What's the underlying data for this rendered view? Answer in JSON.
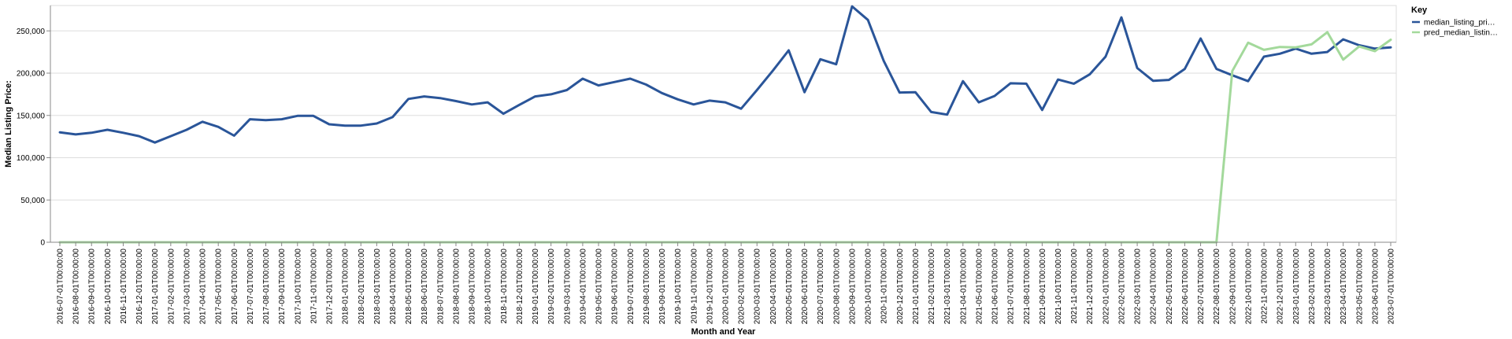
{
  "chart_data": {
    "type": "line",
    "title": "",
    "xlabel": "Month and Year",
    "ylabel": "Median Listing Price:",
    "ylim": [
      0,
      280000
    ],
    "yticks": [
      0,
      50000,
      100000,
      150000,
      200000,
      250000
    ],
    "ytick_labels": [
      "0",
      "50,000",
      "100,000",
      "150,000",
      "200,000",
      "250,000"
    ],
    "grid": true,
    "legend": {
      "title": "Key",
      "position": "top-right"
    },
    "x": [
      "2016-07-01T00:00:00",
      "2016-08-01T00:00:00",
      "2016-09-01T00:00:00",
      "2016-10-01T00:00:00",
      "2016-11-01T00:00:00",
      "2016-12-01T00:00:00",
      "2017-01-01T00:00:00",
      "2017-02-01T00:00:00",
      "2017-03-01T00:00:00",
      "2017-04-01T00:00:00",
      "2017-05-01T00:00:00",
      "2017-06-01T00:00:00",
      "2017-07-01T00:00:00",
      "2017-08-01T00:00:00",
      "2017-09-01T00:00:00",
      "2017-10-01T00:00:00",
      "2017-11-01T00:00:00",
      "2017-12-01T00:00:00",
      "2018-01-01T00:00:00",
      "2018-02-01T00:00:00",
      "2018-03-01T00:00:00",
      "2018-04-01T00:00:00",
      "2018-05-01T00:00:00",
      "2018-06-01T00:00:00",
      "2018-07-01T00:00:00",
      "2018-08-01T00:00:00",
      "2018-09-01T00:00:00",
      "2018-10-01T00:00:00",
      "2018-11-01T00:00:00",
      "2018-12-01T00:00:00",
      "2019-01-01T00:00:00",
      "2019-02-01T00:00:00",
      "2019-03-01T00:00:00",
      "2019-04-01T00:00:00",
      "2019-05-01T00:00:00",
      "2019-06-01T00:00:00",
      "2019-07-01T00:00:00",
      "2019-08-01T00:00:00",
      "2019-09-01T00:00:00",
      "2019-10-01T00:00:00",
      "2019-11-01T00:00:00",
      "2019-12-01T00:00:00",
      "2020-01-01T00:00:00",
      "2020-02-01T00:00:00",
      "2020-03-01T00:00:00",
      "2020-04-01T00:00:00",
      "2020-05-01T00:00:00",
      "2020-06-01T00:00:00",
      "2020-07-01T00:00:00",
      "2020-08-01T00:00:00",
      "2020-09-01T00:00:00",
      "2020-10-01T00:00:00",
      "2020-11-01T00:00:00",
      "2020-12-01T00:00:00",
      "2021-01-01T00:00:00",
      "2021-02-01T00:00:00",
      "2021-03-01T00:00:00",
      "2021-04-01T00:00:00",
      "2021-05-01T00:00:00",
      "2021-06-01T00:00:00",
      "2021-07-01T00:00:00",
      "2021-08-01T00:00:00",
      "2021-09-01T00:00:00",
      "2021-10-01T00:00:00",
      "2021-11-01T00:00:00",
      "2021-12-01T00:00:00",
      "2022-01-01T00:00:00",
      "2022-02-01T00:00:00",
      "2022-03-01T00:00:00",
      "2022-04-01T00:00:00",
      "2022-05-01T00:00:00",
      "2022-06-01T00:00:00",
      "2022-07-01T00:00:00",
      "2022-08-01T00:00:00",
      "2022-09-01T00:00:00",
      "2022-10-01T00:00:00",
      "2022-11-01T00:00:00",
      "2022-12-01T00:00:00",
      "2023-01-01T00:00:00",
      "2023-02-01T00:00:00",
      "2023-03-01T00:00:00",
      "2023-04-01T00:00:00",
      "2023-05-01T00:00:00",
      "2023-06-01T00:00:00",
      "2023-07-01T00:00:00"
    ],
    "series": [
      {
        "name": "median_listing_pri…",
        "color": "#2a5599",
        "values": [
          130000,
          127500,
          129500,
          133000,
          129500,
          125500,
          118000,
          125500,
          133000,
          142500,
          136500,
          126000,
          145500,
          144500,
          145500,
          149500,
          149500,
          139500,
          138000,
          138000,
          140500,
          148000,
          169500,
          172500,
          170500,
          167000,
          163000,
          165500,
          152000,
          162500,
          172500,
          175000,
          180000,
          193500,
          185500,
          189500,
          193500,
          186500,
          176500,
          169000,
          163000,
          167500,
          165500,
          158000,
          180000,
          203000,
          227000,
          177500,
          216500,
          210500,
          279000,
          263000,
          214500,
          177000,
          177500,
          154000,
          151000,
          190500,
          165500,
          173000,
          188000,
          187500,
          156500,
          192500,
          187500,
          198500,
          219500,
          266000,
          206000,
          191000,
          192000,
          205000,
          241000,
          205000,
          197500,
          190500,
          219500,
          223000,
          229000,
          223000,
          225000,
          240000,
          233000,
          229000,
          230500
        ]
      },
      {
        "name": "pred_median_listin…",
        "color": "#a3d99b",
        "values": [
          0,
          0,
          0,
          0,
          0,
          0,
          0,
          0,
          0,
          0,
          0,
          0,
          0,
          0,
          0,
          0,
          0,
          0,
          0,
          0,
          0,
          0,
          0,
          0,
          0,
          0,
          0,
          0,
          0,
          0,
          0,
          0,
          0,
          0,
          0,
          0,
          0,
          0,
          0,
          0,
          0,
          0,
          0,
          0,
          0,
          0,
          0,
          0,
          0,
          0,
          0,
          0,
          0,
          0,
          0,
          0,
          0,
          0,
          0,
          0,
          0,
          0,
          0,
          0,
          0,
          0,
          0,
          0,
          0,
          0,
          0,
          0,
          0,
          0,
          202500,
          236000,
          227500,
          231000,
          230500,
          234000,
          248500,
          216000,
          231500,
          226000,
          239500
        ]
      }
    ]
  }
}
